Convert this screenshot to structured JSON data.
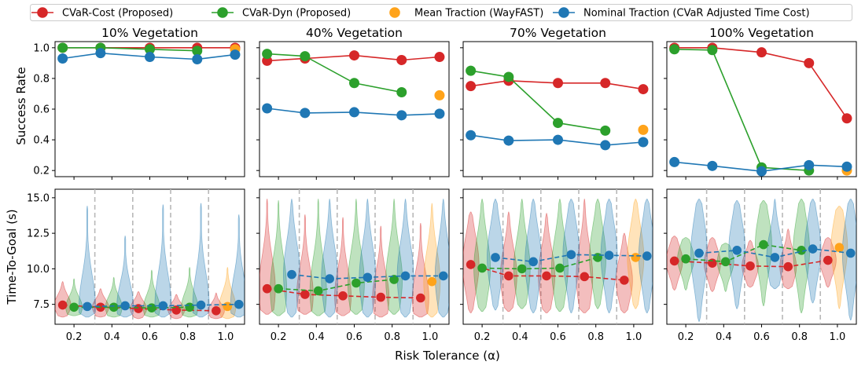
{
  "figure": {
    "xlabel": "Risk Tolerance (α)",
    "top_ylabel": "Success Rate",
    "bottom_ylabel": "Time-To-Goal (s)"
  },
  "legend": [
    {
      "key": "cvar_cost",
      "label": "CVaR-Cost (Proposed)",
      "color": "#d62728",
      "style": "line-marker"
    },
    {
      "key": "cvar_dyn",
      "label": "CVaR-Dyn (Proposed)",
      "color": "#2ca02c",
      "style": "line-marker"
    },
    {
      "key": "mean",
      "label": "Mean Traction (WayFAST)",
      "color": "#ffa31a",
      "style": "marker"
    },
    {
      "key": "nominal",
      "label": "Nominal Traction (CVaR Adjusted Time Cost)",
      "color": "#1f77b4",
      "style": "line-marker"
    }
  ],
  "chart_data": [
    {
      "type": "line",
      "title": "10% Vegetation",
      "ylabel": "Success Rate",
      "ylim": [
        0.16,
        1.04
      ],
      "yticks": [
        "1.0",
        "0.8",
        "0.6",
        "0.4",
        "0.2"
      ],
      "series": [
        {
          "name": "CVaR-Cost (Proposed)",
          "x": [
            0.14,
            0.34,
            0.6,
            0.85,
            1.05
          ],
          "values": [
            1.0,
            1.0,
            1.0,
            1.0,
            1.0
          ]
        },
        {
          "name": "CVaR-Dyn (Proposed)",
          "x": [
            0.14,
            0.34,
            0.6,
            0.85
          ],
          "values": [
            1.0,
            1.0,
            0.99,
            0.98
          ]
        },
        {
          "name": "Mean Traction (WayFAST)",
          "x": [
            1.05
          ],
          "values": [
            0.99
          ]
        },
        {
          "name": "Nominal Traction (CVaR Adjusted Time Cost)",
          "x": [
            0.14,
            0.34,
            0.6,
            0.85,
            1.05
          ],
          "values": [
            0.93,
            0.965,
            0.94,
            0.925,
            0.955
          ]
        }
      ]
    },
    {
      "type": "line",
      "title": "40% Vegetation",
      "ylabel": "Success Rate",
      "ylim": [
        0.16,
        1.04
      ],
      "yticks": [
        "1.0",
        "0.8",
        "0.6",
        "0.4",
        "0.2"
      ],
      "series": [
        {
          "name": "CVaR-Cost (Proposed)",
          "x": [
            0.14,
            0.34,
            0.6,
            0.85,
            1.05
          ],
          "values": [
            0.915,
            0.93,
            0.95,
            0.92,
            0.94
          ]
        },
        {
          "name": "CVaR-Dyn (Proposed)",
          "x": [
            0.14,
            0.34,
            0.6,
            0.85
          ],
          "values": [
            0.96,
            0.945,
            0.77,
            0.71
          ]
        },
        {
          "name": "Mean Traction (WayFAST)",
          "x": [
            1.05
          ],
          "values": [
            0.69
          ]
        },
        {
          "name": "Nominal Traction (CVaR Adjusted Time Cost)",
          "x": [
            0.14,
            0.34,
            0.6,
            0.85,
            1.05
          ],
          "values": [
            0.605,
            0.575,
            0.58,
            0.56,
            0.57
          ]
        }
      ]
    },
    {
      "type": "line",
      "title": "70% Vegetation",
      "ylabel": "Success Rate",
      "ylim": [
        0.16,
        1.04
      ],
      "yticks": [
        "1.0",
        "0.8",
        "0.6",
        "0.4",
        "0.2"
      ],
      "series": [
        {
          "name": "CVaR-Cost (Proposed)",
          "x": [
            0.14,
            0.34,
            0.6,
            0.85,
            1.05
          ],
          "values": [
            0.75,
            0.785,
            0.77,
            0.77,
            0.73
          ]
        },
        {
          "name": "CVaR-Dyn (Proposed)",
          "x": [
            0.14,
            0.34,
            0.6,
            0.85
          ],
          "values": [
            0.85,
            0.81,
            0.51,
            0.46
          ]
        },
        {
          "name": "Mean Traction (WayFAST)",
          "x": [
            1.05
          ],
          "values": [
            0.465
          ]
        },
        {
          "name": "Nominal Traction (CVaR Adjusted Time Cost)",
          "x": [
            0.14,
            0.34,
            0.6,
            0.85,
            1.05
          ],
          "values": [
            0.43,
            0.395,
            0.4,
            0.365,
            0.385
          ]
        }
      ]
    },
    {
      "type": "line",
      "title": "100% Vegetation",
      "ylabel": "Success Rate",
      "ylim": [
        0.16,
        1.04
      ],
      "yticks": [
        "1.0",
        "0.8",
        "0.6",
        "0.4",
        "0.2"
      ],
      "series": [
        {
          "name": "CVaR-Cost (Proposed)",
          "x": [
            0.14,
            0.34,
            0.6,
            0.85,
            1.05
          ],
          "values": [
            1.0,
            1.0,
            0.97,
            0.9,
            0.54
          ]
        },
        {
          "name": "CVaR-Dyn (Proposed)",
          "x": [
            0.14,
            0.34,
            0.6,
            0.85
          ],
          "values": [
            0.99,
            0.985,
            0.22,
            0.2
          ]
        },
        {
          "name": "Mean Traction (WayFAST)",
          "x": [
            1.05
          ],
          "values": [
            0.2
          ]
        },
        {
          "name": "Nominal Traction (CVaR Adjusted Time Cost)",
          "x": [
            0.14,
            0.34,
            0.6,
            0.85,
            1.05
          ],
          "values": [
            0.255,
            0.23,
            0.195,
            0.235,
            0.225
          ]
        }
      ]
    },
    {
      "type": "violin",
      "title": "10% Vegetation",
      "ylabel": "Time-To-Goal (s)",
      "xlabel": "Risk Tolerance (α)",
      "xlim": [
        0.1,
        1.1
      ],
      "xticks": [
        "0.2",
        "0.4",
        "0.6",
        "0.8",
        "1.0"
      ],
      "ylim": [
        6.1,
        15.6
      ],
      "yticks": [
        "15.0",
        "12.5",
        "10.0",
        "7.5"
      ],
      "separators": [
        0.31,
        0.51,
        0.71,
        0.91
      ],
      "series": [
        {
          "name": "CVaR-Cost (Proposed)",
          "x": [
            0.14,
            0.34,
            0.54,
            0.74,
            0.95
          ],
          "values": [
            7.45,
            7.3,
            7.2,
            7.1,
            7.05
          ],
          "min": [
            6.6,
            6.6,
            6.5,
            6.5,
            6.5
          ],
          "max": [
            9.1,
            8.6,
            8.4,
            8.2,
            8.3
          ]
        },
        {
          "name": "CVaR-Dyn (Proposed)",
          "x": [
            0.2,
            0.41,
            0.61,
            0.81
          ],
          "values": [
            7.3,
            7.3,
            7.25,
            7.3
          ],
          "min": [
            6.7,
            6.6,
            6.6,
            6.6
          ],
          "max": [
            9.3,
            9.4,
            9.9,
            10.1
          ]
        },
        {
          "name": "Mean Traction (WayFAST)",
          "x": [
            1.01
          ],
          "values": [
            7.35
          ],
          "min": [
            6.5
          ],
          "max": [
            10.1
          ]
        },
        {
          "name": "Nominal Traction (CVaR Adjusted Time Cost)",
          "x": [
            0.27,
            0.47,
            0.67,
            0.87,
            1.07
          ],
          "values": [
            7.35,
            7.4,
            7.4,
            7.45,
            7.5
          ],
          "min": [
            6.6,
            6.6,
            6.6,
            6.6,
            6.6
          ],
          "max": [
            14.4,
            12.3,
            14.5,
            14.6,
            13.8
          ]
        }
      ]
    },
    {
      "type": "violin",
      "title": "40% Vegetation",
      "ylabel": "Time-To-Goal (s)",
      "xlabel": "Risk Tolerance (α)",
      "xlim": [
        0.1,
        1.1
      ],
      "xticks": [
        "0.2",
        "0.4",
        "0.6",
        "0.8",
        "1.0"
      ],
      "ylim": [
        6.1,
        15.6
      ],
      "yticks": [
        "15.0",
        "12.5",
        "10.0",
        "7.5"
      ],
      "separators": [
        0.31,
        0.51,
        0.71,
        0.91
      ],
      "series": [
        {
          "name": "CVaR-Cost (Proposed)",
          "x": [
            0.14,
            0.34,
            0.54,
            0.74,
            0.95
          ],
          "values": [
            8.6,
            8.2,
            8.1,
            8.0,
            7.95
          ],
          "min": [
            6.8,
            6.8,
            6.7,
            6.6,
            6.6
          ],
          "max": [
            14.9,
            13.8,
            13.6,
            13.0,
            13.2
          ]
        },
        {
          "name": "CVaR-Dyn (Proposed)",
          "x": [
            0.2,
            0.41,
            0.61,
            0.81
          ],
          "values": [
            8.6,
            8.45,
            9.0,
            9.25
          ],
          "min": [
            6.7,
            6.7,
            6.8,
            6.8
          ],
          "max": [
            14.8,
            14.9,
            14.9,
            14.9
          ]
        },
        {
          "name": "Mean Traction (WayFAST)",
          "x": [
            1.01
          ],
          "values": [
            9.1
          ],
          "min": [
            6.6
          ],
          "max": [
            14.6
          ]
        },
        {
          "name": "Nominal Traction (CVaR Adjusted Time Cost)",
          "x": [
            0.27,
            0.47,
            0.67,
            0.87,
            1.07
          ],
          "values": [
            9.6,
            9.3,
            9.4,
            9.5,
            9.5
          ],
          "min": [
            6.6,
            6.6,
            6.6,
            6.6,
            6.6
          ],
          "max": [
            14.9,
            14.9,
            14.9,
            14.9,
            14.9
          ]
        }
      ]
    },
    {
      "type": "violin",
      "title": "70% Vegetation",
      "ylabel": "Time-To-Goal (s)",
      "xlabel": "Risk Tolerance (α)",
      "xlim": [
        0.1,
        1.1
      ],
      "xticks": [
        "0.2",
        "0.4",
        "0.6",
        "0.8",
        "1.0"
      ],
      "ylim": [
        6.1,
        15.6
      ],
      "yticks": [
        "15.0",
        "12.5",
        "10.0",
        "7.5"
      ],
      "separators": [
        0.31,
        0.51,
        0.71,
        0.91
      ],
      "series": [
        {
          "name": "CVaR-Cost (Proposed)",
          "x": [
            0.14,
            0.34,
            0.54,
            0.74,
            0.95
          ],
          "values": [
            10.3,
            9.5,
            9.5,
            9.45,
            9.2
          ],
          "min": [
            6.9,
            7.0,
            6.9,
            6.9,
            6.9
          ],
          "max": [
            14.0,
            14.0,
            13.9,
            14.9,
            12.5
          ]
        },
        {
          "name": "CVaR-Dyn (Proposed)",
          "x": [
            0.2,
            0.41,
            0.61,
            0.81
          ],
          "values": [
            10.05,
            10.0,
            10.05,
            10.8
          ],
          "min": [
            7.0,
            7.2,
            7.0,
            7.2
          ],
          "max": [
            14.9,
            14.9,
            14.9,
            14.9
          ]
        },
        {
          "name": "Mean Traction (WayFAST)",
          "x": [
            1.01
          ],
          "values": [
            10.8
          ],
          "min": [
            7.2
          ],
          "max": [
            14.9
          ]
        },
        {
          "name": "Nominal Traction (CVaR Adjusted Time Cost)",
          "x": [
            0.27,
            0.47,
            0.67,
            0.87,
            1.07
          ],
          "values": [
            10.8,
            10.5,
            11.0,
            10.95,
            10.9
          ],
          "min": [
            7.1,
            6.9,
            6.9,
            6.9,
            6.9
          ],
          "max": [
            14.9,
            14.9,
            14.9,
            14.9,
            14.9
          ]
        }
      ]
    },
    {
      "type": "violin",
      "title": "100% Vegetation",
      "ylabel": "Time-To-Goal (s)",
      "xlabel": "Risk Tolerance (α)",
      "xlim": [
        0.1,
        1.1
      ],
      "xticks": [
        "0.2",
        "0.4",
        "0.6",
        "0.8",
        "1.0"
      ],
      "ylim": [
        6.1,
        15.6
      ],
      "yticks": [
        "15.0",
        "12.5",
        "10.0",
        "7.5"
      ],
      "separators": [
        0.31,
        0.51,
        0.71,
        0.91
      ],
      "series": [
        {
          "name": "CVaR-Cost (Proposed)",
          "x": [
            0.14,
            0.34,
            0.54,
            0.74,
            0.95
          ],
          "values": [
            10.55,
            10.4,
            10.2,
            10.15,
            10.6
          ],
          "min": [
            8.5,
            8.4,
            8.7,
            8.6,
            8.7
          ],
          "max": [
            12.3,
            12.2,
            12.0,
            12.8,
            12.2
          ]
        },
        {
          "name": "CVaR-Dyn (Proposed)",
          "x": [
            0.2,
            0.41,
            0.61,
            0.81
          ],
          "values": [
            10.7,
            10.5,
            11.7,
            11.3
          ],
          "min": [
            8.5,
            8.4,
            7.4,
            6.9
          ],
          "max": [
            12.2,
            11.8,
            14.8,
            14.9
          ]
        },
        {
          "name": "Mean Traction (WayFAST)",
          "x": [
            1.01
          ],
          "values": [
            11.5
          ],
          "min": [
            7.2
          ],
          "max": [
            14.4
          ]
        },
        {
          "name": "Nominal Traction (CVaR Adjusted Time Cost)",
          "x": [
            0.27,
            0.47,
            0.67,
            0.87,
            1.07
          ],
          "values": [
            11.1,
            11.3,
            10.8,
            11.4,
            11.1
          ],
          "min": [
            6.3,
            7.2,
            8.6,
            7.6,
            6.4
          ],
          "max": [
            14.9,
            14.8,
            14.9,
            14.9,
            14.9
          ]
        }
      ]
    }
  ]
}
